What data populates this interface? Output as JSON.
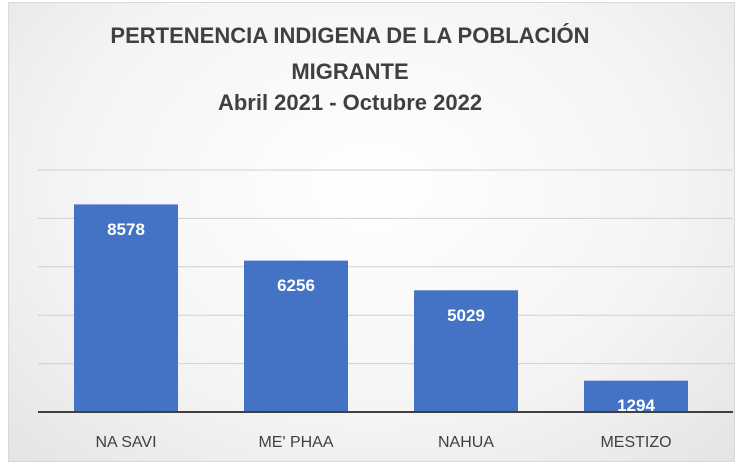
{
  "chart_data": {
    "type": "bar",
    "title": "PERTENENCIA INDIGENA DE LA POBLACIÓN MIGRANTE",
    "subtitle": "Abril 2021 - Octubre 2022",
    "categories": [
      "NA SAVI",
      "ME' PHAA",
      "NAHUA",
      "MESTIZO"
    ],
    "values": [
      8578,
      6256,
      5029,
      1294
    ],
    "color": "#4472c4",
    "ylim": [
      0,
      10000
    ],
    "yticks": [
      0,
      2000,
      4000,
      6000,
      8000,
      10000
    ],
    "grid": true
  }
}
